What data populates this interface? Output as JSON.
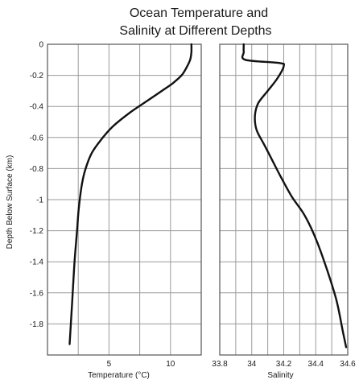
{
  "chart_data": {
    "type": "line",
    "title_lines": [
      "Ocean Temperature and",
      "Salinity at Different Depths"
    ],
    "ylabel": "Depth Below Surface (km)",
    "ylim": [
      -2.0,
      0
    ],
    "y_ticks": [
      0,
      -0.2,
      -0.4,
      -0.6,
      -0.8,
      -1,
      -1.2,
      -1.4,
      -1.6,
      -1.8
    ],
    "y_tick_labels": [
      "0",
      "-0.2",
      "-0.4",
      "-0.6",
      "-0.8",
      "-1",
      "-1.2",
      "-1.4",
      "-1.6",
      "-1.8"
    ],
    "grid": true,
    "panels": [
      {
        "xlabel": "Temperature (°C)",
        "xlim": [
          0,
          12.5
        ],
        "x_grid": [
          2.5,
          5,
          7.5,
          10
        ],
        "x_ticks": [
          5,
          10
        ],
        "x_tick_labels": [
          "5",
          "10"
        ],
        "series": {
          "x": [
            11.7,
            11.7,
            11.6,
            11.3,
            10.9,
            10.2,
            9.3,
            8.0,
            6.7,
            5.3,
            4.3,
            3.6,
            3.1,
            2.8,
            2.55,
            2.4,
            2.2,
            2.05,
            1.9,
            1.8
          ],
          "y": [
            0,
            -0.05,
            -0.1,
            -0.15,
            -0.2,
            -0.25,
            -0.3,
            -0.37,
            -0.44,
            -0.53,
            -0.62,
            -0.7,
            -0.8,
            -0.9,
            -1.05,
            -1.2,
            -1.4,
            -1.6,
            -1.8,
            -1.93
          ]
        }
      },
      {
        "xlabel": "Salinity",
        "xlim": [
          33.8,
          34.6
        ],
        "x_grid": [
          33.9,
          34.0,
          34.1,
          34.2,
          34.3,
          34.4,
          34.5
        ],
        "x_ticks": [
          33.8,
          34,
          34.2,
          34.4,
          34.6
        ],
        "x_tick_labels": [
          "33.8",
          "34",
          "34.2",
          "34.4",
          "34.6"
        ],
        "series": {
          "x": [
            33.95,
            33.95,
            33.96,
            34.17,
            34.2,
            34.16,
            34.1,
            34.04,
            34.02,
            34.03,
            34.08,
            34.13,
            34.18,
            34.25,
            34.33,
            34.4,
            34.47,
            34.53,
            34.57,
            34.59
          ],
          "y": [
            0,
            -0.05,
            -0.1,
            -0.12,
            -0.14,
            -0.22,
            -0.3,
            -0.38,
            -0.46,
            -0.55,
            -0.65,
            -0.75,
            -0.85,
            -0.98,
            -1.1,
            -1.25,
            -1.45,
            -1.65,
            -1.85,
            -1.95
          ]
        }
      }
    ]
  }
}
